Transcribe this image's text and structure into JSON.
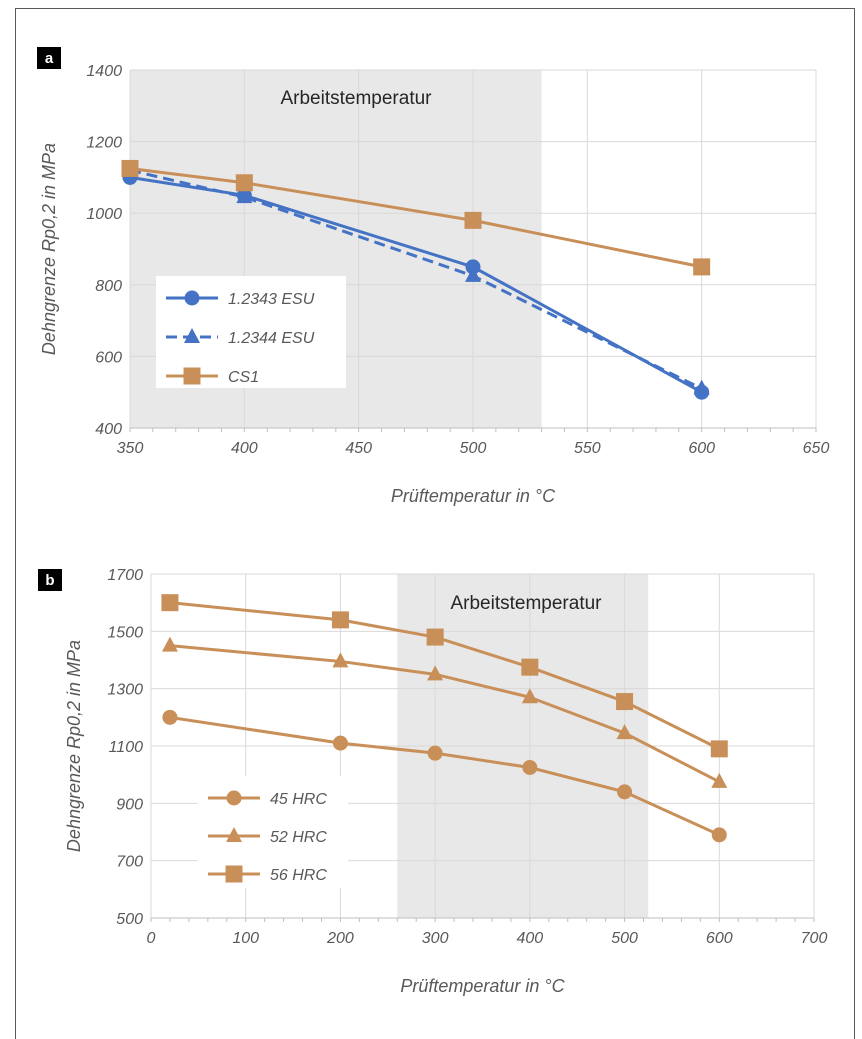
{
  "chart_data": [
    {
      "panel": "a",
      "type": "line",
      "xlabel": "Prüftemperatur in °C",
      "ylabel": "Dehngrenze Rp0,2 in MPa",
      "xlim": [
        350,
        650
      ],
      "ylim": [
        400,
        1400
      ],
      "xticks": [
        "350",
        "400",
        "450",
        "500",
        "550",
        "600",
        "650"
      ],
      "yticks": [
        "400",
        "600",
        "800",
        "1000",
        "1200",
        "1400"
      ],
      "grid": true,
      "annotation": "Arbeitstemperatur",
      "shaded_range": [
        350,
        530
      ],
      "legend_position": "left",
      "series": [
        {
          "name": "1.2343 ESU",
          "color": "#4472C4",
          "marker": "circle",
          "dash": "solid",
          "x": [
            350,
            400,
            500,
            600
          ],
          "y": [
            1100,
            1050,
            850,
            500
          ]
        },
        {
          "name": "1.2344 ESU",
          "color": "#4472C4",
          "marker": "triangle",
          "dash": "dashed",
          "x": [
            350,
            400,
            500,
            600
          ],
          "y": [
            1120,
            1045,
            825,
            510
          ]
        },
        {
          "name": "CS1",
          "color": "#C98F58",
          "marker": "square",
          "dash": "solid",
          "x": [
            350,
            400,
            500,
            600
          ],
          "y": [
            1125,
            1085,
            980,
            850
          ]
        }
      ]
    },
    {
      "panel": "b",
      "type": "line",
      "xlabel": "Prüftemperatur in °C",
      "ylabel": "Dehngrenze Rp0,2 in MPa",
      "xlim": [
        0,
        700
      ],
      "ylim": [
        500,
        1700
      ],
      "xticks": [
        "0",
        "100",
        "200",
        "300",
        "400",
        "500",
        "600",
        "700"
      ],
      "yticks": [
        "500",
        "700",
        "900",
        "1100",
        "1300",
        "1500",
        "1700"
      ],
      "grid": true,
      "annotation": "Arbeitstemperatur",
      "shaded_range": [
        260,
        525
      ],
      "legend_position": "left",
      "series": [
        {
          "name": "45 HRC",
          "color": "#C98F58",
          "marker": "circle",
          "dash": "solid",
          "x": [
            20,
            200,
            300,
            400,
            500,
            600
          ],
          "y": [
            1200,
            1110,
            1075,
            1025,
            940,
            790
          ]
        },
        {
          "name": "52 HRC",
          "color": "#C98F58",
          "marker": "triangle",
          "dash": "solid",
          "x": [
            20,
            200,
            300,
            400,
            500,
            600
          ],
          "y": [
            1450,
            1395,
            1350,
            1270,
            1145,
            975
          ]
        },
        {
          "name": "56 HRC",
          "color": "#C98F58",
          "marker": "square",
          "dash": "solid",
          "x": [
            20,
            200,
            300,
            400,
            500,
            600
          ],
          "y": [
            1600,
            1540,
            1480,
            1375,
            1255,
            1090
          ]
        }
      ]
    }
  ]
}
